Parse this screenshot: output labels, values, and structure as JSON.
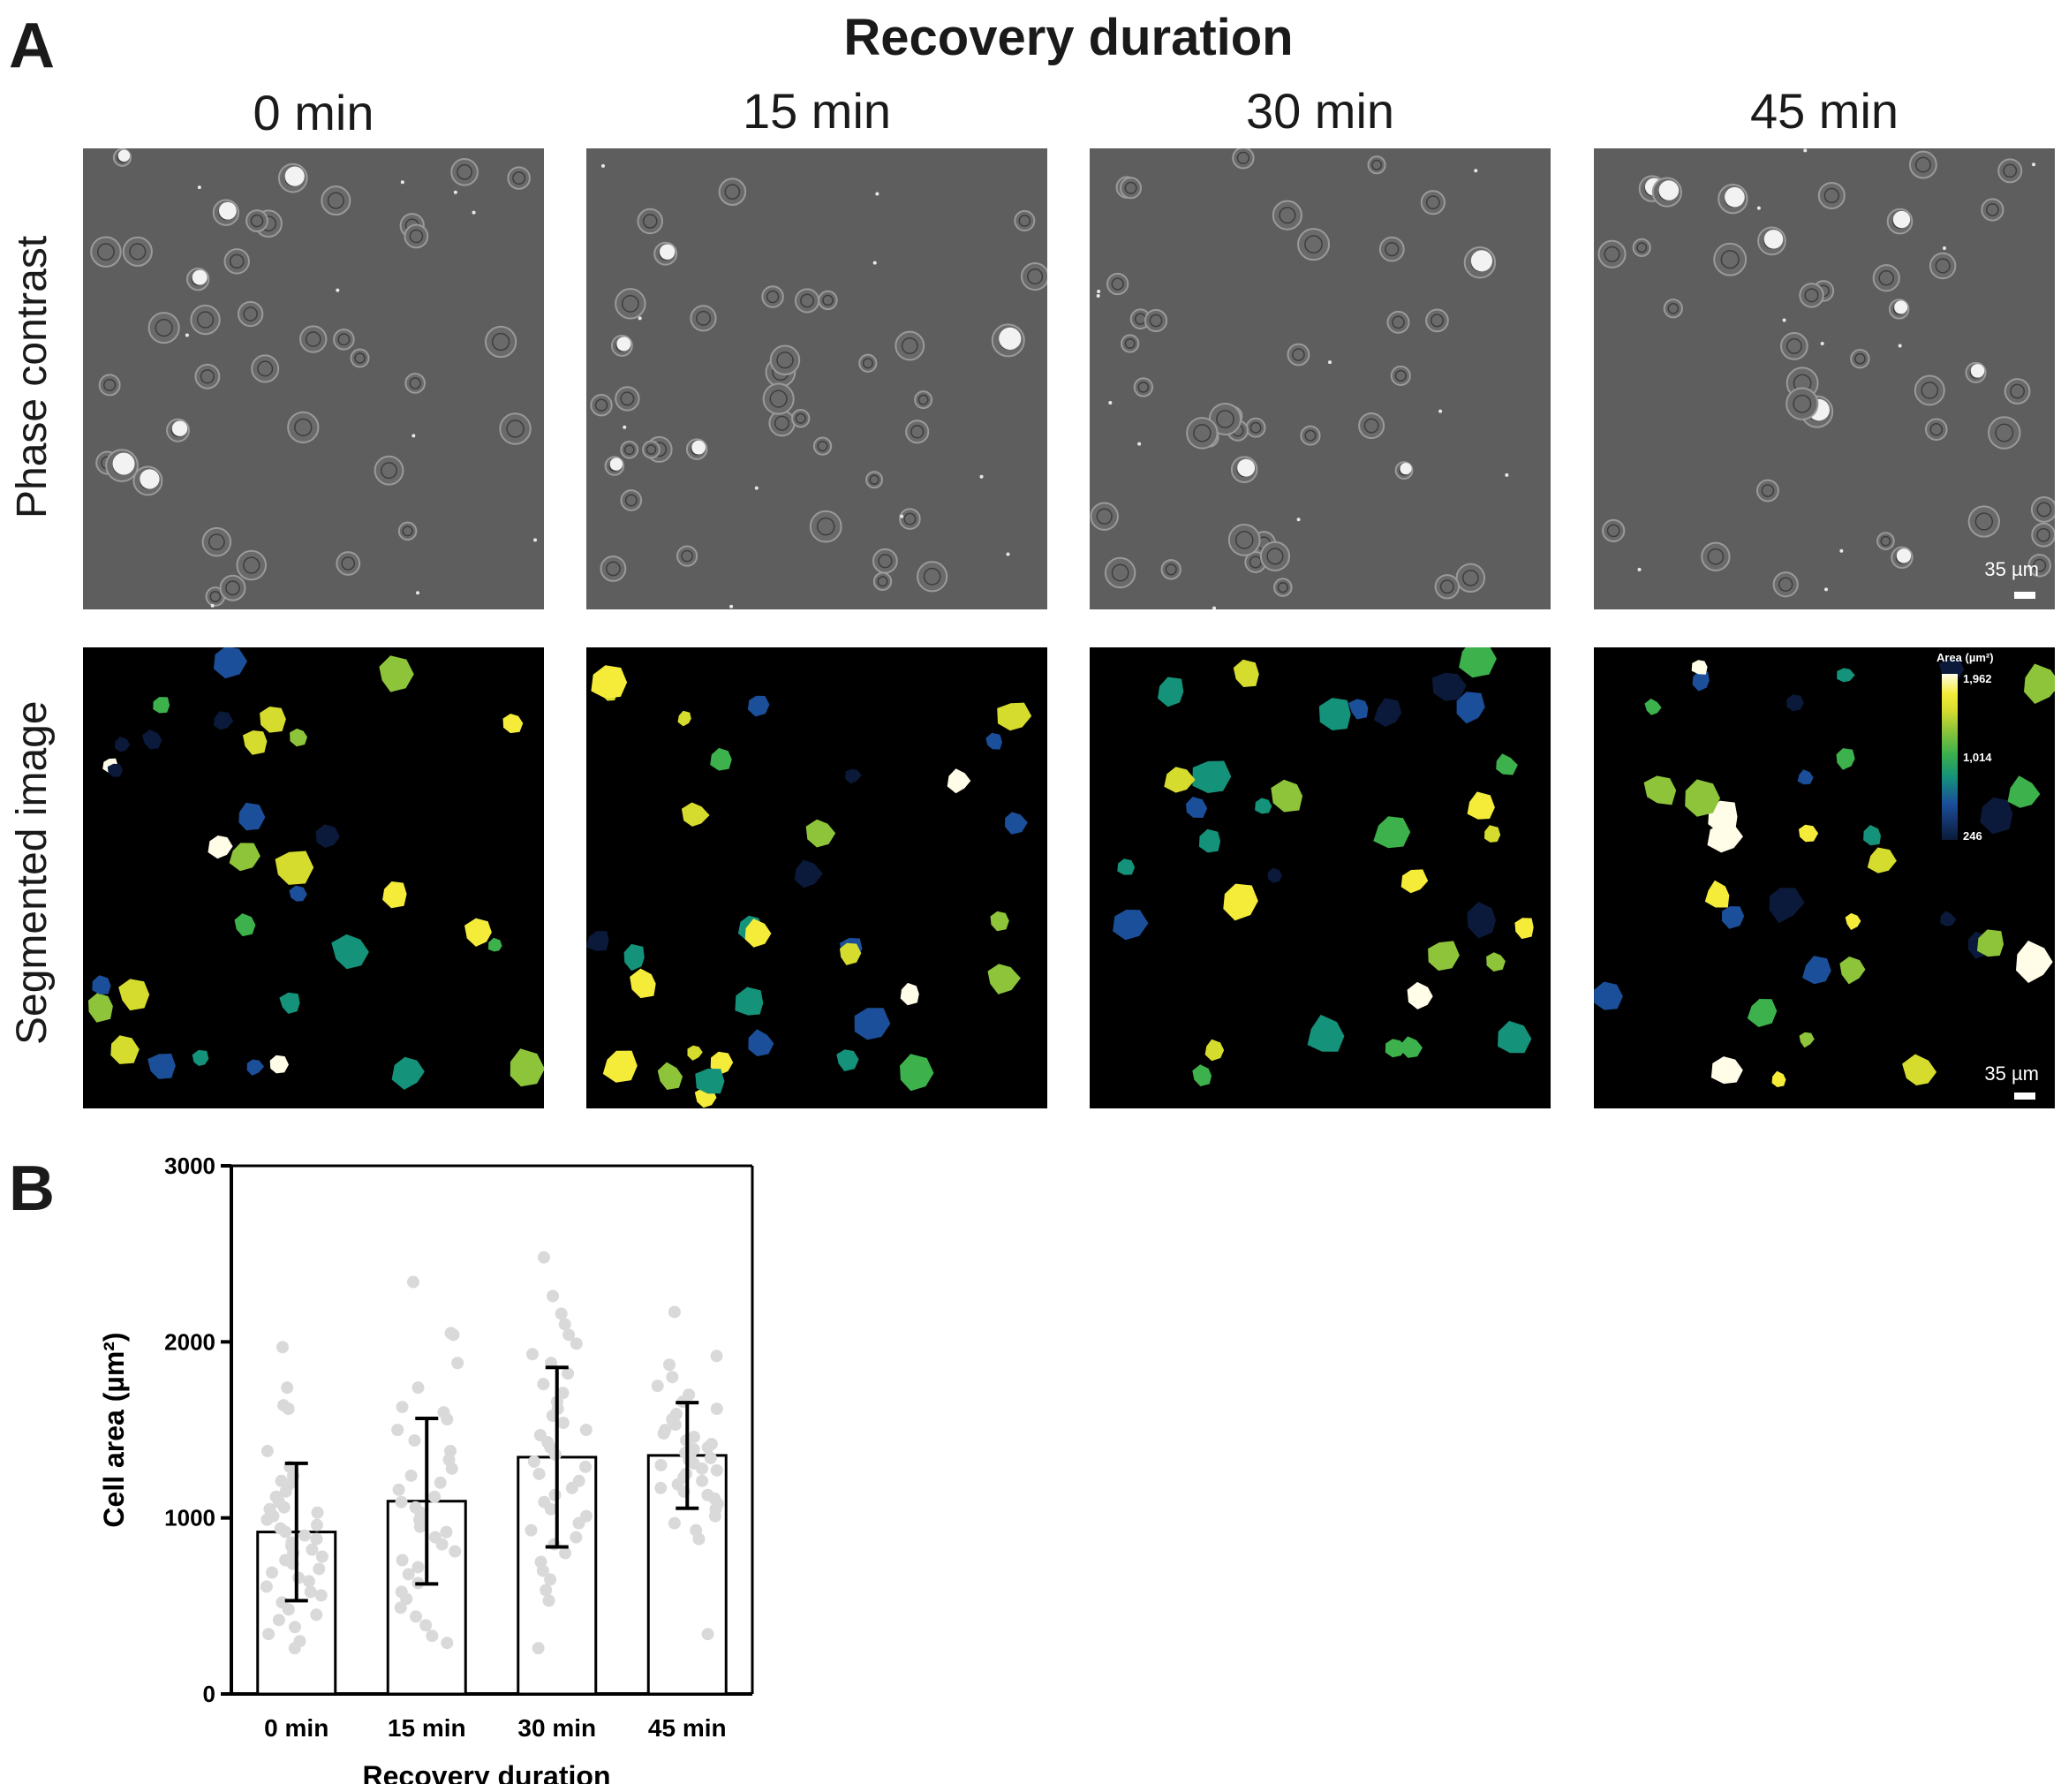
{
  "panel_a": {
    "letter": "A",
    "title": "Recovery duration",
    "columns": [
      "0 min",
      "15 min",
      "30 min",
      "45 min"
    ],
    "rows": [
      "Phase contrast",
      "Segmented image"
    ],
    "scale_bar": "35 µm",
    "colorbar": {
      "title": "Area (µm²)",
      "ticks": [
        "1,962",
        "1,014",
        "246"
      ]
    },
    "colors": {
      "phase_background": "#5e5e5e",
      "segmented_background": "#000000",
      "colormap": [
        "#0b1a3a",
        "#1b4f9a",
        "#14927a",
        "#3db14b",
        "#8ec43a",
        "#d6dc2e",
        "#f5ec3a",
        "#fffde8"
      ]
    }
  },
  "panel_b": {
    "letter": "B",
    "chart_data": {
      "type": "bar",
      "title": "",
      "xlabel": "Recovery duration",
      "ylabel": "Cell area (µm²)",
      "ylim": [
        0,
        3000
      ],
      "yticks": [
        0,
        1000,
        2000,
        3000
      ],
      "categories": [
        "0 min",
        "15 min",
        "30 min",
        "45 min"
      ],
      "series": [
        {
          "values": [
            920,
            1095,
            1345,
            1355
          ],
          "error_sd": [
            390,
            470,
            510,
            300
          ]
        }
      ],
      "points": [
        [
          1970,
          1740,
          1640,
          1620,
          1380,
          1290,
          1240,
          1210,
          1190,
          1150,
          1120,
          1090,
          1060,
          1050,
          1030,
          1010,
          990,
          960,
          940,
          920,
          900,
          880,
          860,
          840,
          820,
          800,
          780,
          760,
          740,
          710,
          690,
          660,
          640,
          610,
          580,
          560,
          520,
          480,
          450,
          420,
          380,
          340,
          300,
          260
        ],
        [
          2340,
          2050,
          2040,
          1880,
          1740,
          1630,
          1600,
          1560,
          1500,
          1440,
          1380,
          1330,
          1280,
          1240,
          1200,
          1160,
          1120,
          1090,
          1060,
          1030,
          990,
          950,
          920,
          890,
          850,
          810,
          760,
          720,
          680,
          630,
          580,
          540,
          490,
          440,
          390,
          330,
          290
        ],
        [
          2480,
          2260,
          2160,
          2100,
          2040,
          1990,
          1930,
          1880,
          1820,
          1760,
          1710,
          1660,
          1620,
          1580,
          1540,
          1500,
          1470,
          1430,
          1400,
          1360,
          1320,
          1290,
          1250,
          1210,
          1170,
          1130,
          1090,
          1050,
          1010,
          970,
          930,
          890,
          850,
          800,
          750,
          700,
          650,
          590,
          530,
          260
        ],
        [
          2170,
          1920,
          1870,
          1800,
          1750,
          1700,
          1660,
          1620,
          1590,
          1560,
          1530,
          1500,
          1480,
          1460,
          1440,
          1420,
          1400,
          1390,
          1370,
          1360,
          1340,
          1330,
          1310,
          1300,
          1280,
          1270,
          1250,
          1230,
          1210,
          1190,
          1170,
          1150,
          1130,
          1110,
          1080,
          1050,
          1010,
          970,
          930,
          880,
          340
        ]
      ],
      "colors": {
        "bar_fill": "#ffffff",
        "bar_stroke": "#000000",
        "points": "#d9d9d9",
        "error": "#000000"
      }
    }
  }
}
